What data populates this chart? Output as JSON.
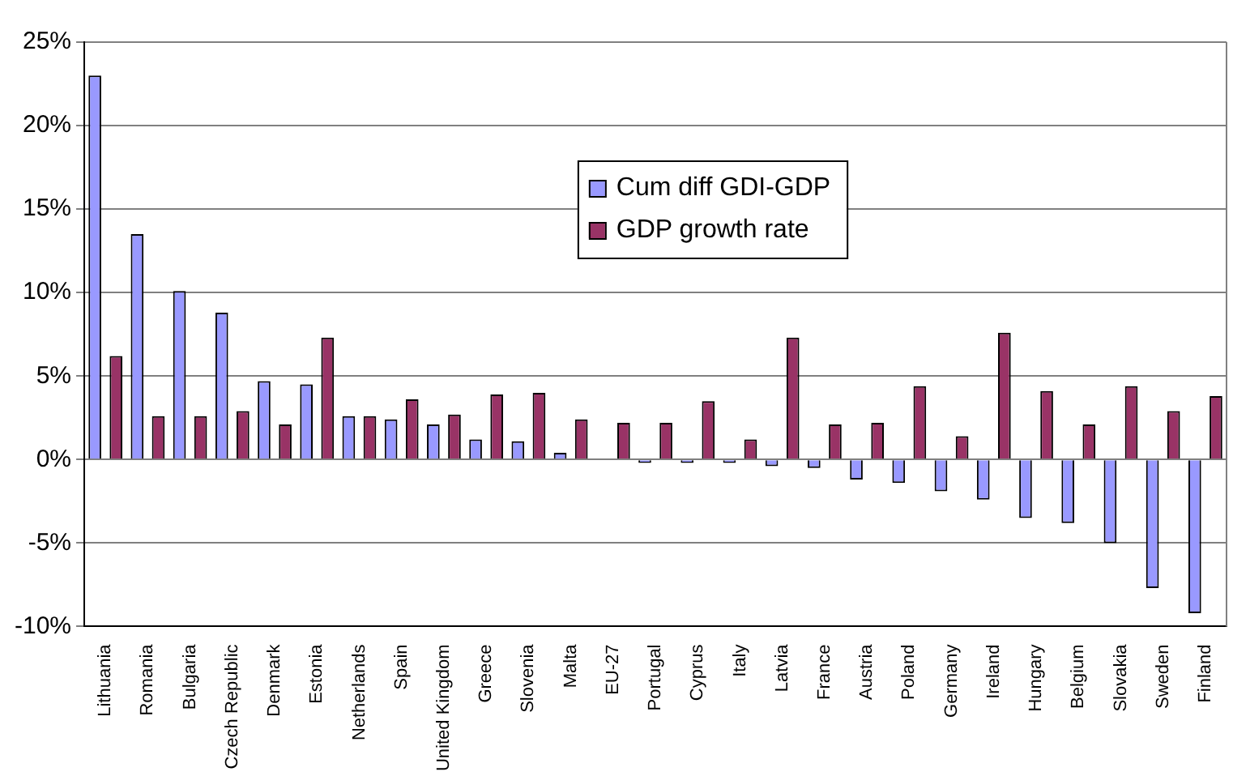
{
  "chart_data": {
    "type": "bar",
    "categories": [
      "Lithuania",
      "Romania",
      "Bulgaria",
      "Czech Republic",
      "Denmark",
      "Estonia",
      "Netherlands",
      "Spain",
      "United Kingdom",
      "Greece",
      "Slovenia",
      "Malta",
      "EU-27",
      "Portugal",
      "Cyprus",
      "Italy",
      "Latvia",
      "France",
      "Austria",
      "Poland",
      "Germany",
      "Ireland",
      "Hungary",
      "Belgium",
      "Slovakia",
      "Sweden",
      "Finland"
    ],
    "series": [
      {
        "name": "Cum diff GDI-GDP",
        "color": "#9999ff",
        "values": [
          23.0,
          13.5,
          10.1,
          8.8,
          4.7,
          4.5,
          2.6,
          2.4,
          2.1,
          1.2,
          1.1,
          0.4,
          0,
          -0.2,
          -0.2,
          -0.2,
          -0.4,
          -0.5,
          -1.2,
          -1.4,
          -1.9,
          -2.4,
          -3.5,
          -3.8,
          -5.0,
          -7.7,
          -9.2
        ]
      },
      {
        "name": "GDP growth rate",
        "color": "#993366",
        "values": [
          6.2,
          2.6,
          2.6,
          2.9,
          2.1,
          7.3,
          2.6,
          3.6,
          2.7,
          3.9,
          4.0,
          2.4,
          2.2,
          2.2,
          3.5,
          1.2,
          7.3,
          2.1,
          2.2,
          4.4,
          1.4,
          7.6,
          4.1,
          2.1,
          4.4,
          2.9,
          3.8
        ]
      }
    ],
    "ylim": [
      -10,
      25
    ],
    "yticks": [
      {
        "value": -10,
        "label": "-10%"
      },
      {
        "value": -5,
        "label": "-5%"
      },
      {
        "value": 0,
        "label": "0%"
      },
      {
        "value": 5,
        "label": "5%"
      },
      {
        "value": 10,
        "label": "10%"
      },
      {
        "value": 15,
        "label": "15%"
      },
      {
        "value": 20,
        "label": "20%"
      },
      {
        "value": 25,
        "label": "25%"
      }
    ],
    "grid": "y",
    "legend": "top"
  }
}
